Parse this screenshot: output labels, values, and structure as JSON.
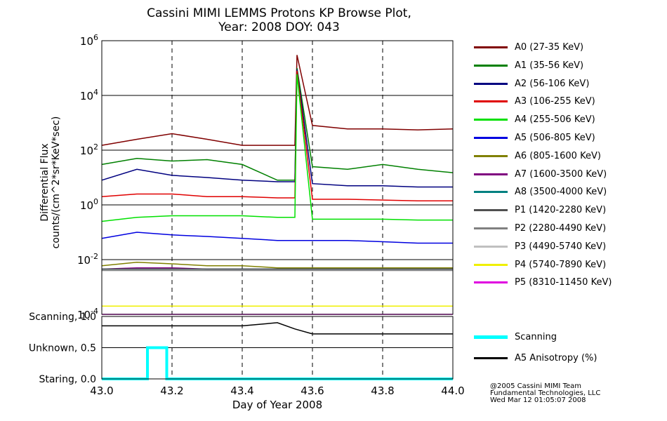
{
  "title_line1": "Cassini MIMI LEMMS Protons KP Browse Plot,",
  "title_line2": "Year: 2008 DOY: 043",
  "credits": [
    "@2005 Cassini MIMI Team",
    "Fundamental Technologies, LLC",
    "Wed Mar 12 01:05:07 2008"
  ],
  "chart_data": [
    {
      "type": "line",
      "title": "Cassini MIMI LEMMS Protons KP Browse Plot, Year: 2008 DOY: 043",
      "ylabel": "Differential Flux counts/(cm^2*sr*KeV*sec)",
      "yscale": "log",
      "ylim": [
        0.0001,
        1000000
      ],
      "ytick_values": [
        0.0001,
        0.01,
        1,
        100,
        10000,
        1000000
      ],
      "ytick_bases": [
        "10",
        "10",
        "10",
        "10",
        "10",
        "10"
      ],
      "ytick_exps": [
        "-4",
        "-2",
        "0",
        "2",
        "4",
        "6"
      ],
      "xlim": [
        43.0,
        44.0
      ],
      "xtick_values": [
        43.0,
        43.2,
        43.4,
        43.6,
        43.8,
        44.0
      ],
      "vertical_gridlines_dashed": [
        43.2,
        43.4,
        43.6,
        43.8
      ],
      "legend_position": "right",
      "series": [
        {
          "name": "A0 (27-35 KeV)",
          "color": "#800000",
          "x": [
            43.0,
            43.1,
            43.2,
            43.3,
            43.4,
            43.5,
            43.55,
            43.556,
            43.6,
            43.7,
            43.8,
            43.9,
            44.0
          ],
          "values": [
            150,
            250,
            400,
            250,
            150,
            150,
            150,
            300000,
            800,
            600,
            600,
            550,
            600
          ]
        },
        {
          "name": "A1 (35-56 KeV)",
          "color": "#008000",
          "x": [
            43.0,
            43.1,
            43.2,
            43.3,
            43.4,
            43.5,
            43.55,
            43.556,
            43.6,
            43.7,
            43.8,
            43.9,
            44.0
          ],
          "values": [
            30,
            50,
            40,
            45,
            30,
            8,
            8,
            100000,
            25,
            20,
            30,
            20,
            15
          ]
        },
        {
          "name": "A2 (56-106 KeV)",
          "color": "#000080",
          "x": [
            43.0,
            43.1,
            43.2,
            43.3,
            43.4,
            43.5,
            43.55,
            43.556,
            43.6,
            43.7,
            43.8,
            43.9,
            44.0
          ],
          "values": [
            8,
            20,
            12,
            10,
            8,
            7,
            7,
            90000,
            6,
            5,
            5,
            4.5,
            4.5
          ]
        },
        {
          "name": "A3 (106-255 KeV)",
          "color": "#e00000",
          "x": [
            43.0,
            43.1,
            43.2,
            43.3,
            43.4,
            43.5,
            43.55,
            43.556,
            43.6,
            43.7,
            43.8,
            43.9,
            44.0
          ],
          "values": [
            2,
            2.5,
            2.5,
            2,
            2,
            1.8,
            1.8,
            80000,
            1.6,
            1.6,
            1.5,
            1.4,
            1.4
          ]
        },
        {
          "name": "A4 (255-506 KeV)",
          "color": "#00e000",
          "x": [
            43.0,
            43.1,
            43.2,
            43.3,
            43.4,
            43.5,
            43.55,
            43.556,
            43.6,
            43.7,
            43.8,
            43.9,
            44.0
          ],
          "values": [
            0.25,
            0.35,
            0.4,
            0.4,
            0.4,
            0.35,
            0.35,
            60000,
            0.3,
            0.3,
            0.3,
            0.28,
            0.28
          ]
        },
        {
          "name": "A5 (506-805 KeV)",
          "color": "#0000e0",
          "x": [
            43.0,
            43.1,
            43.2,
            43.3,
            43.4,
            43.5,
            43.6,
            43.7,
            43.8,
            43.9,
            44.0
          ],
          "values": [
            0.06,
            0.1,
            0.08,
            0.07,
            0.06,
            0.05,
            0.05,
            0.05,
            0.045,
            0.04,
            0.04
          ]
        },
        {
          "name": "A6 (805-1600 KeV)",
          "color": "#808000",
          "x": [
            43.0,
            43.1,
            43.2,
            43.3,
            43.4,
            43.5,
            43.6,
            43.7,
            43.8,
            43.9,
            44.0
          ],
          "values": [
            0.006,
            0.008,
            0.007,
            0.006,
            0.006,
            0.005,
            0.005,
            0.005,
            0.005,
            0.005,
            0.005
          ]
        },
        {
          "name": "A7 (1600-3500 KeV)",
          "color": "#800080",
          "x": [
            43.0,
            43.1,
            43.2,
            43.3,
            43.4,
            43.5,
            43.6,
            43.7,
            43.8,
            43.9,
            44.0
          ],
          "values": [
            0.0045,
            0.005,
            0.005,
            0.0045,
            0.0045,
            0.0045,
            0.0045,
            0.0045,
            0.0045,
            0.0045,
            0.0045
          ]
        },
        {
          "name": "A8 (3500-4000 KeV)",
          "color": "#008080",
          "x": [
            43.0,
            43.2,
            43.4,
            43.6,
            43.8,
            44.0
          ],
          "values": [
            0.0045,
            0.0045,
            0.0045,
            0.0045,
            0.0045,
            0.0045
          ]
        },
        {
          "name": "P1 (1420-2280 KeV)",
          "color": "#505050",
          "x": [
            43.0,
            43.2,
            43.4,
            43.6,
            43.8,
            44.0
          ],
          "values": [
            0.0045,
            0.0045,
            0.0045,
            0.0045,
            0.0045,
            0.0045
          ]
        },
        {
          "name": "P2 (2280-4490 KeV)",
          "color": "#808080",
          "x": [
            43.0,
            43.2,
            43.4,
            43.6,
            43.8,
            44.0
          ],
          "values": [
            0.004,
            0.004,
            0.004,
            0.004,
            0.004,
            0.004
          ]
        },
        {
          "name": "P3 (4490-5740 KeV)",
          "color": "#c0c0c0",
          "x": [
            43.0,
            43.2,
            43.4,
            43.6,
            43.8,
            44.0
          ],
          "values": [
            0.0002,
            0.0002,
            0.0002,
            0.0002,
            0.0002,
            0.0002
          ]
        },
        {
          "name": "P4 (5740-7890 KeV)",
          "color": "#f0f000",
          "x": [
            43.0,
            43.2,
            43.4,
            43.6,
            43.8,
            44.0
          ],
          "values": [
            0.0002,
            0.0002,
            0.0002,
            0.0002,
            0.0002,
            0.0002
          ]
        },
        {
          "name": "P5 (8310-11450 KeV)",
          "color": "#e000e0",
          "x": [
            43.0,
            44.0
          ],
          "values": [
            0.0001,
            0.0001
          ]
        }
      ]
    },
    {
      "type": "line",
      "xlabel": "Day of Year 2008",
      "xlim": [
        43.0,
        44.0
      ],
      "xtick_labels": [
        "43.0",
        "43.2",
        "43.4",
        "43.6",
        "43.8",
        "44.0"
      ],
      "xtick_values": [
        43.0,
        43.2,
        43.4,
        43.6,
        43.8,
        44.0
      ],
      "ylim": [
        0.0,
        1.0
      ],
      "ytick_values": [
        0.0,
        0.5,
        1.0
      ],
      "ytick_labels": [
        "Staring, 0.0",
        "Unknown, 0.5",
        "Scanning, 1.0"
      ],
      "legend_position": "right",
      "series": [
        {
          "name": "Scanning",
          "color": "#00ffff",
          "x": [
            43.0,
            43.13,
            43.13,
            43.185,
            43.185,
            44.0
          ],
          "values": [
            0.0,
            0.0,
            0.5,
            0.5,
            0.0,
            0.0
          ]
        },
        {
          "name": "A5 Anisotropy (%)",
          "color": "#000000",
          "x": [
            43.0,
            43.2,
            43.4,
            43.5,
            43.55,
            43.6,
            43.8,
            44.0
          ],
          "values": [
            0.85,
            0.85,
            0.85,
            0.9,
            0.8,
            0.72,
            0.72,
            0.72
          ]
        }
      ]
    }
  ]
}
